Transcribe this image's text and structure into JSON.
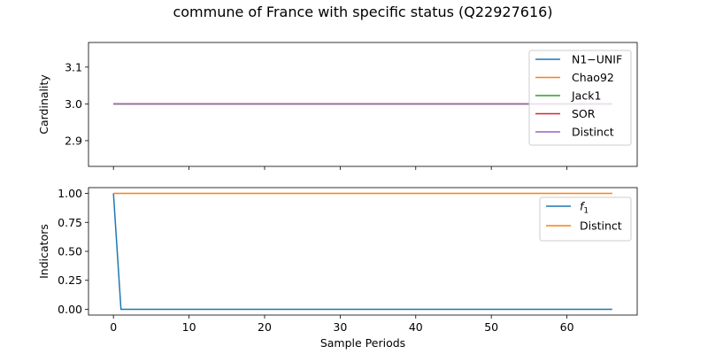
{
  "chart_data": [
    {
      "type": "line",
      "title": "commune of France with specific status (Q22927616)",
      "ylabel": "Cardinality",
      "xlabel": "",
      "xlim": [
        -3.3,
        69.3
      ],
      "ylim": [
        2.83,
        3.167
      ],
      "yticks": [
        2.9,
        3.0,
        3.1
      ],
      "ytick_labels": [
        "2.9",
        "3.0",
        "3.1"
      ],
      "xticks": [
        0,
        10,
        20,
        30,
        40,
        50,
        60
      ],
      "legend_position": "upper right",
      "series": [
        {
          "name": "N1−UNIF",
          "color": "#1f77b4",
          "x": [
            0,
            66
          ],
          "y": [
            3.0,
            3.0
          ]
        },
        {
          "name": "Chao92",
          "color": "#ff7f0e",
          "x": [
            0,
            66
          ],
          "y": [
            3.0,
            3.0
          ]
        },
        {
          "name": "Jack1",
          "color": "#2ca02c",
          "x": [
            0,
            66
          ],
          "y": [
            3.0,
            3.0
          ]
        },
        {
          "name": "SOR",
          "color": "#d62728",
          "x": [
            0,
            66
          ],
          "y": [
            3.0,
            3.0
          ]
        },
        {
          "name": "Distinct",
          "color": "#9467bd",
          "x": [
            0,
            66
          ],
          "y": [
            3.0,
            3.0
          ]
        }
      ]
    },
    {
      "type": "line",
      "title": "",
      "ylabel": "Indicators",
      "xlabel": "Sample Periods",
      "xlim": [
        -3.3,
        69.3
      ],
      "ylim": [
        -0.05,
        1.05
      ],
      "yticks": [
        0.0,
        0.25,
        0.5,
        0.75,
        1.0
      ],
      "ytick_labels": [
        "0.00",
        "0.25",
        "0.50",
        "0.75",
        "1.00"
      ],
      "xticks": [
        0,
        10,
        20,
        30,
        40,
        50,
        60
      ],
      "xtick_labels": [
        "0",
        "10",
        "20",
        "30",
        "40",
        "50",
        "60"
      ],
      "legend_position": "upper right",
      "series": [
        {
          "name": "f",
          "subscript": "1",
          "color": "#1f77b4",
          "x": [
            0,
            1,
            66
          ],
          "y": [
            1.0,
            0.0,
            0.0
          ]
        },
        {
          "name": "Distinct",
          "color": "#ff7f0e",
          "x": [
            0,
            66
          ],
          "y": [
            1.0,
            1.0
          ]
        }
      ]
    }
  ]
}
